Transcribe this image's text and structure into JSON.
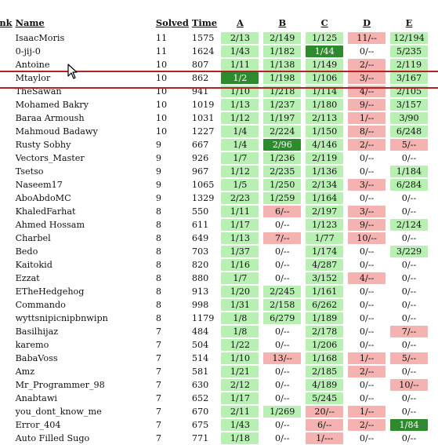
{
  "headers": {
    "rank": "ank",
    "name": "Name",
    "solved": "Solved",
    "time": "Time",
    "problems": [
      "A",
      "B",
      "C",
      "D",
      "E"
    ]
  },
  "rows": [
    {
      "name": "IsaacMoris",
      "solved": "11",
      "time": "1575",
      "p": [
        [
          "2/13",
          "s"
        ],
        [
          "2/149",
          "s"
        ],
        [
          "1/125",
          "s"
        ],
        [
          "11/--",
          "f"
        ],
        [
          "12/194",
          "s"
        ]
      ]
    },
    {
      "name": "0-jij-0",
      "solved": "11",
      "time": "1624",
      "p": [
        [
          "1/43",
          "s"
        ],
        [
          "1/182",
          "s"
        ],
        [
          "1/44",
          "x"
        ],
        [
          "0/--",
          "n"
        ],
        [
          "5/235",
          "s"
        ]
      ]
    },
    {
      "name": "Antoine",
      "solved": "10",
      "time": "807",
      "p": [
        [
          "1/11",
          "s"
        ],
        [
          "1/138",
          "s"
        ],
        [
          "1/149",
          "s"
        ],
        [
          "2/--",
          "f"
        ],
        [
          "2/119",
          "s"
        ]
      ]
    },
    {
      "name": "Mtaylor",
      "solved": "10",
      "time": "862",
      "p": [
        [
          "1/2",
          "x"
        ],
        [
          "1/198",
          "s"
        ],
        [
          "1/106",
          "s"
        ],
        [
          "3/--",
          "f"
        ],
        [
          "3/167",
          "s"
        ]
      ]
    },
    {
      "name": "TheSawan",
      "solved": "10",
      "time": "941",
      "p": [
        [
          "1/10",
          "s"
        ],
        [
          "1/218",
          "s"
        ],
        [
          "1/114",
          "s"
        ],
        [
          "4/--",
          "f"
        ],
        [
          "2/105",
          "s"
        ]
      ]
    },
    {
      "name": "Mohamed Bakry",
      "solved": "10",
      "time": "1019",
      "p": [
        [
          "1/13",
          "s"
        ],
        [
          "1/237",
          "s"
        ],
        [
          "1/180",
          "s"
        ],
        [
          "9/--",
          "f"
        ],
        [
          "3/157",
          "s"
        ]
      ]
    },
    {
      "name": "Baraa Armoush",
      "solved": "10",
      "time": "1031",
      "p": [
        [
          "1/12",
          "s"
        ],
        [
          "1/197",
          "s"
        ],
        [
          "2/113",
          "s"
        ],
        [
          "1/--",
          "f"
        ],
        [
          "3/90",
          "s"
        ]
      ]
    },
    {
      "name": "Mahmoud Badawy",
      "solved": "10",
      "time": "1227",
      "p": [
        [
          "1/4",
          "s"
        ],
        [
          "2/224",
          "s"
        ],
        [
          "1/150",
          "s"
        ],
        [
          "8/--",
          "f"
        ],
        [
          "6/248",
          "s"
        ]
      ]
    },
    {
      "name": "Rusty Sobhy",
      "solved": "9",
      "time": "667",
      "p": [
        [
          "1/4",
          "s"
        ],
        [
          "2/96",
          "x"
        ],
        [
          "4/146",
          "s"
        ],
        [
          "2/--",
          "f"
        ],
        [
          "5/--",
          "f"
        ]
      ]
    },
    {
      "name": "Vectors_Master",
      "solved": "9",
      "time": "926",
      "p": [
        [
          "1/7",
          "s"
        ],
        [
          "1/236",
          "s"
        ],
        [
          "2/119",
          "s"
        ],
        [
          "0/--",
          "n"
        ],
        [
          "0/--",
          "n"
        ]
      ]
    },
    {
      "name": "Tsetso",
      "solved": "9",
      "time": "967",
      "p": [
        [
          "1/12",
          "s"
        ],
        [
          "2/235",
          "s"
        ],
        [
          "1/136",
          "s"
        ],
        [
          "0/--",
          "n"
        ],
        [
          "1/184",
          "s"
        ]
      ]
    },
    {
      "name": "Naseem17",
      "solved": "9",
      "time": "1065",
      "p": [
        [
          "1/5",
          "s"
        ],
        [
          "1/250",
          "s"
        ],
        [
          "2/134",
          "s"
        ],
        [
          "3/--",
          "f"
        ],
        [
          "6/284",
          "s"
        ]
      ]
    },
    {
      "name": "AboAbdoMC",
      "solved": "9",
      "time": "1329",
      "p": [
        [
          "2/23",
          "s"
        ],
        [
          "1/259",
          "s"
        ],
        [
          "1/164",
          "s"
        ],
        [
          "0/--",
          "n"
        ],
        [
          "0/--",
          "n"
        ]
      ]
    },
    {
      "name": "KhaledFarhat",
      "solved": "8",
      "time": "550",
      "p": [
        [
          "1/11",
          "s"
        ],
        [
          "6/--",
          "f"
        ],
        [
          "2/197",
          "s"
        ],
        [
          "3/--",
          "f"
        ],
        [
          "0/--",
          "n"
        ]
      ]
    },
    {
      "name": "Ahmed Hossam",
      "solved": "8",
      "time": "611",
      "p": [
        [
          "1/17",
          "s"
        ],
        [
          "0/--",
          "n"
        ],
        [
          "1/123",
          "s"
        ],
        [
          "9/--",
          "f"
        ],
        [
          "2/124",
          "s"
        ]
      ]
    },
    {
      "name": "Charbel",
      "solved": "8",
      "time": "649",
      "p": [
        [
          "1/13",
          "s"
        ],
        [
          "7/--",
          "f"
        ],
        [
          "1/77",
          "s"
        ],
        [
          "10/--",
          "f"
        ],
        [
          "0/--",
          "n"
        ]
      ]
    },
    {
      "name": "Bedo",
      "solved": "8",
      "time": "703",
      "p": [
        [
          "1/37",
          "s"
        ],
        [
          "0/--",
          "n"
        ],
        [
          "1/174",
          "s"
        ],
        [
          "0/--",
          "n"
        ],
        [
          "3/229",
          "s"
        ]
      ]
    },
    {
      "name": "Kaitokid",
      "solved": "8",
      "time": "820",
      "p": [
        [
          "1/16",
          "s"
        ],
        [
          "0/--",
          "n"
        ],
        [
          "4/287",
          "s"
        ],
        [
          "0/--",
          "n"
        ],
        [
          "0/--",
          "n"
        ]
      ]
    },
    {
      "name": "Ezzat",
      "solved": "8",
      "time": "880",
      "p": [
        [
          "1/7",
          "s"
        ],
        [
          "0/--",
          "n"
        ],
        [
          "3/152",
          "s"
        ],
        [
          "4/--",
          "f"
        ],
        [
          "0/--",
          "n"
        ]
      ]
    },
    {
      "name": "ETheHedgehog",
      "solved": "8",
      "time": "913",
      "p": [
        [
          "1/20",
          "s"
        ],
        [
          "2/245",
          "s"
        ],
        [
          "1/161",
          "s"
        ],
        [
          "0/--",
          "n"
        ],
        [
          "0/--",
          "n"
        ]
      ]
    },
    {
      "name": "Commando",
      "solved": "8",
      "time": "998",
      "p": [
        [
          "1/31",
          "s"
        ],
        [
          "2/158",
          "s"
        ],
        [
          "6/262",
          "s"
        ],
        [
          "0/--",
          "n"
        ],
        [
          "0/--",
          "n"
        ]
      ]
    },
    {
      "name": "wyttsnipicnipbnwipn",
      "solved": "8",
      "time": "1179",
      "p": [
        [
          "1/8",
          "s"
        ],
        [
          "6/279",
          "s"
        ],
        [
          "1/189",
          "s"
        ],
        [
          "0/--",
          "n"
        ],
        [
          "0/--",
          "n"
        ]
      ]
    },
    {
      "name": "Basilhijaz",
      "solved": "7",
      "time": "484",
      "p": [
        [
          "1/8",
          "s"
        ],
        [
          "0/--",
          "n"
        ],
        [
          "2/178",
          "s"
        ],
        [
          "0/--",
          "n"
        ],
        [
          "7/--",
          "f"
        ]
      ]
    },
    {
      "name": "karemo",
      "solved": "7",
      "time": "504",
      "p": [
        [
          "1/22",
          "s"
        ],
        [
          "0/--",
          "n"
        ],
        [
          "1/206",
          "s"
        ],
        [
          "0/--",
          "n"
        ],
        [
          "0/--",
          "n"
        ]
      ]
    },
    {
      "name": "BabaVoss",
      "solved": "7",
      "time": "514",
      "p": [
        [
          "1/10",
          "s"
        ],
        [
          "13/--",
          "f"
        ],
        [
          "1/168",
          "s"
        ],
        [
          "1/--",
          "f"
        ],
        [
          "5/--",
          "f"
        ]
      ]
    },
    {
      "name": "Amz",
      "solved": "7",
      "time": "581",
      "p": [
        [
          "1/21",
          "s"
        ],
        [
          "0/--",
          "n"
        ],
        [
          "2/185",
          "s"
        ],
        [
          "2/--",
          "f"
        ],
        [
          "0/--",
          "n"
        ]
      ]
    },
    {
      "name": "Mr_Programmer_98",
      "solved": "7",
      "time": "630",
      "p": [
        [
          "2/12",
          "s"
        ],
        [
          "0/--",
          "n"
        ],
        [
          "4/189",
          "s"
        ],
        [
          "0/--",
          "n"
        ],
        [
          "10/--",
          "f"
        ]
      ]
    },
    {
      "name": "Anabtawi",
      "solved": "7",
      "time": "652",
      "p": [
        [
          "1/17",
          "s"
        ],
        [
          "0/--",
          "n"
        ],
        [
          "5/245",
          "s"
        ],
        [
          "0/--",
          "n"
        ],
        [
          "0/--",
          "n"
        ]
      ]
    },
    {
      "name": "you_dont_know_me",
      "solved": "7",
      "time": "670",
      "p": [
        [
          "2/11",
          "s"
        ],
        [
          "1/269",
          "s"
        ],
        [
          "20/--",
          "f"
        ],
        [
          "1/--",
          "f"
        ],
        [
          "0/--",
          "n"
        ]
      ]
    },
    {
      "name": "Error_404",
      "solved": "7",
      "time": "675",
      "p": [
        [
          "1/43",
          "s"
        ],
        [
          "0/--",
          "n"
        ],
        [
          "6/--",
          "f"
        ],
        [
          "2/--",
          "f"
        ],
        [
          "1/84",
          "x"
        ]
      ]
    },
    {
      "name": "Auto Filled Sugo",
      "solved": "7",
      "time": "771",
      "p": [
        [
          "1/18",
          "s"
        ],
        [
          "0/--",
          "n"
        ],
        [
          "1/---",
          "f"
        ],
        [
          "0/--",
          "n"
        ],
        [
          "0/--",
          "n"
        ]
      ]
    }
  ],
  "colors": {
    "solved": "#b7f0b2",
    "first_solve": "#2d8a2d",
    "failed": "#f4b2b0",
    "highlight": "#b22222"
  },
  "highlighted_row": "Mtaylor"
}
